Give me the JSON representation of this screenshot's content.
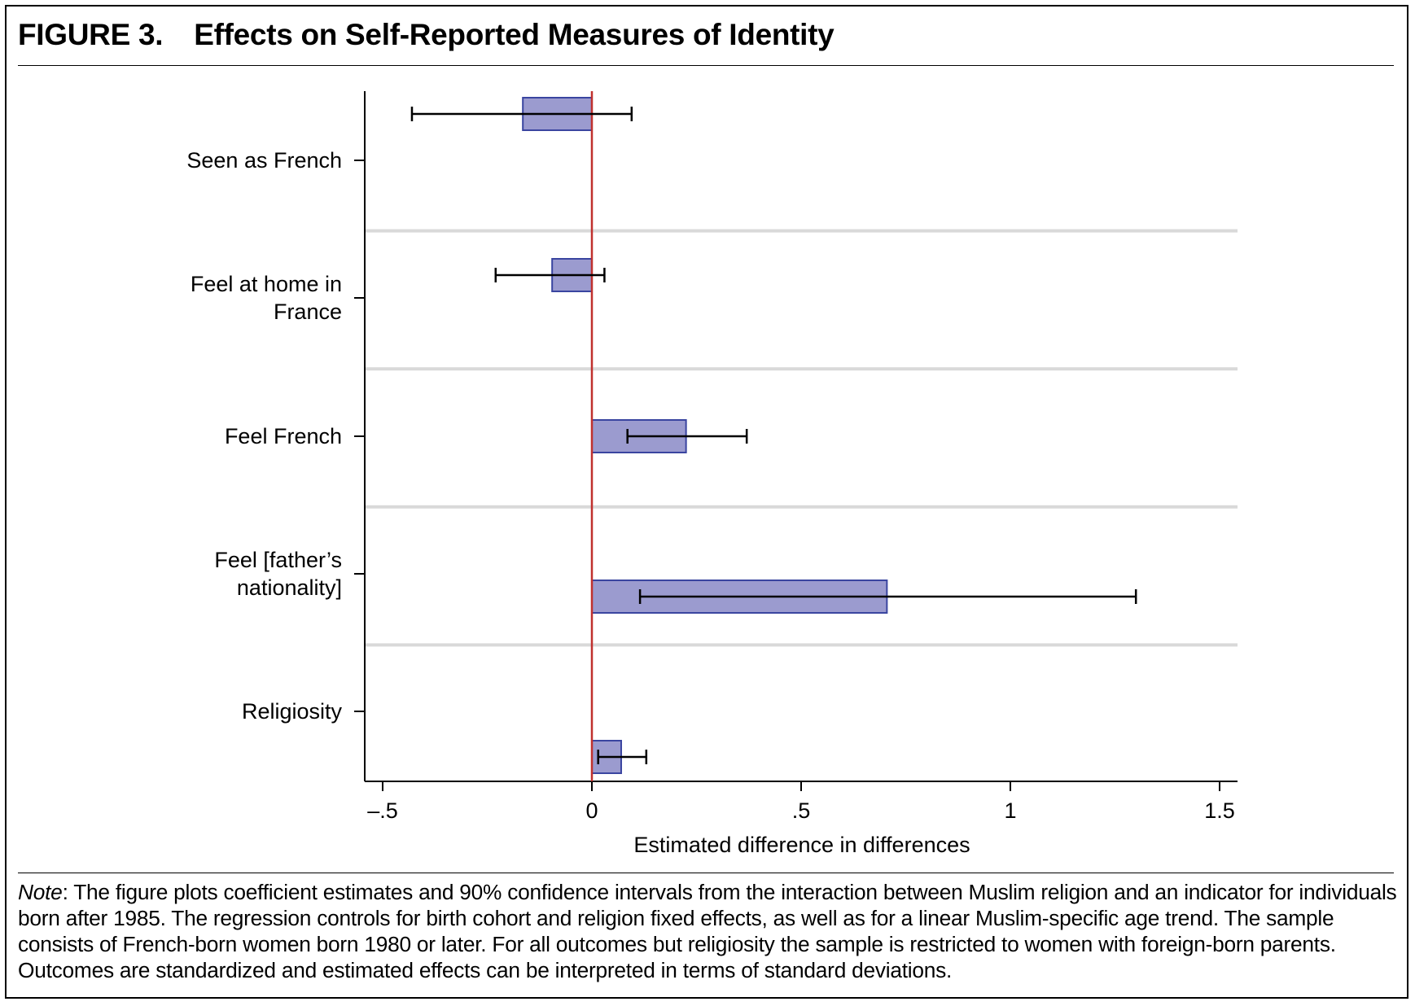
{
  "figure": {
    "number": "FIGURE 3.",
    "title": "Effects on Self-Reported Measures of Identity"
  },
  "note": {
    "label": "Note",
    "text": ": The figure plots coefficient estimates and 90% confidence intervals from the interaction between Muslim religion and an indicator for individuals born after 1985. The regression controls for birth cohort and religion fixed effects, as well as for a linear Muslim-specific age trend. The sample consists of French-born women born 1980 or later. For all outcomes but religiosity the sample is restricted to women with foreign-born parents. Outcomes are standardized and estimated effects can be interpreted in terms of standard deviations."
  },
  "colors": {
    "bar_fill": "#9b9bcf",
    "bar_stroke": "#3a45a0",
    "zero_line": "#c0312e",
    "separator": "#d9d9d9",
    "axis": "#000000"
  },
  "chart_data": {
    "type": "bar",
    "orientation": "horizontal",
    "xlabel": "Estimated difference in differences",
    "ylabel": "",
    "xlim": [
      -0.55,
      1.55
    ],
    "x_ticks": [
      -0.5,
      0,
      0.5,
      1,
      1.5
    ],
    "x_tick_labels": [
      "–.5",
      "0",
      ".5",
      "1",
      "1.5"
    ],
    "reference_line_x": 0,
    "grid": "horizontal separators between categories",
    "categories": [
      [
        "Seen as French"
      ],
      [
        "Feel at home in",
        "France"
      ],
      [
        "Feel French"
      ],
      [
        "Feel [father’s",
        "nationality]"
      ],
      [
        "Religiosity"
      ]
    ],
    "estimates": [
      -0.165,
      -0.095,
      0.225,
      0.705,
      0.07
    ],
    "ci_lower": [
      -0.43,
      -0.23,
      0.085,
      0.115,
      0.015
    ],
    "ci_upper": [
      0.095,
      0.03,
      0.37,
      1.3,
      0.13
    ],
    "ci_level": "90%"
  }
}
